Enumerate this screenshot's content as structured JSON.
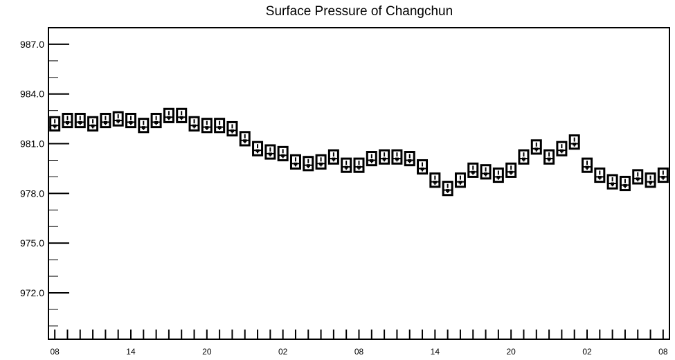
{
  "chart_data": {
    "type": "box",
    "title": "Surface Pressure of Changchun",
    "xlabel": "",
    "ylabel": "",
    "ylim": [
      969.2,
      988.0
    ],
    "y_ticks": [
      "987.0",
      "984.0",
      "981.0",
      "978.0",
      "975.0",
      "972.0"
    ],
    "y_tick_values": [
      987.0,
      984.0,
      981.0,
      978.0,
      975.0,
      972.0
    ],
    "x_tick_labels": [
      "08",
      "14",
      "20",
      "02",
      "08",
      "14",
      "20",
      "02",
      "08"
    ],
    "x_tick_label_positions": [
      0,
      6,
      12,
      18,
      24,
      30,
      36,
      42,
      48
    ],
    "x_range": [
      -0.5,
      48.5
    ],
    "grid": false,
    "boxes": [
      {
        "x": 0,
        "low": 981.8,
        "high": 982.6,
        "median": 982.1
      },
      {
        "x": 1,
        "low": 982.0,
        "high": 982.8,
        "median": 982.3
      },
      {
        "x": 2,
        "low": 982.0,
        "high": 982.8,
        "median": 982.3
      },
      {
        "x": 3,
        "low": 981.8,
        "high": 982.6,
        "median": 982.1
      },
      {
        "x": 4,
        "low": 982.0,
        "high": 982.8,
        "median": 982.3
      },
      {
        "x": 5,
        "low": 982.1,
        "high": 982.9,
        "median": 982.4
      },
      {
        "x": 6,
        "low": 982.0,
        "high": 982.8,
        "median": 982.3
      },
      {
        "x": 7,
        "low": 981.7,
        "high": 982.5,
        "median": 982.0
      },
      {
        "x": 8,
        "low": 982.0,
        "high": 982.8,
        "median": 982.3
      },
      {
        "x": 9,
        "low": 982.3,
        "high": 983.1,
        "median": 982.6
      },
      {
        "x": 10,
        "low": 982.3,
        "high": 983.1,
        "median": 982.6
      },
      {
        "x": 11,
        "low": 981.8,
        "high": 982.6,
        "median": 982.1
      },
      {
        "x": 12,
        "low": 981.7,
        "high": 982.5,
        "median": 982.0
      },
      {
        "x": 13,
        "low": 981.7,
        "high": 982.5,
        "median": 982.0
      },
      {
        "x": 14,
        "low": 981.5,
        "high": 982.3,
        "median": 981.8
      },
      {
        "x": 15,
        "low": 980.9,
        "high": 981.7,
        "median": 981.2
      },
      {
        "x": 16,
        "low": 980.3,
        "high": 981.1,
        "median": 980.6
      },
      {
        "x": 17,
        "low": 980.1,
        "high": 980.9,
        "median": 980.4
      },
      {
        "x": 18,
        "low": 980.0,
        "high": 980.8,
        "median": 980.3
      },
      {
        "x": 19,
        "low": 979.5,
        "high": 980.3,
        "median": 979.8
      },
      {
        "x": 20,
        "low": 979.4,
        "high": 980.2,
        "median": 979.7
      },
      {
        "x": 21,
        "low": 979.5,
        "high": 980.3,
        "median": 979.8
      },
      {
        "x": 22,
        "low": 979.8,
        "high": 980.6,
        "median": 980.1
      },
      {
        "x": 23,
        "low": 979.3,
        "high": 980.1,
        "median": 979.6
      },
      {
        "x": 24,
        "low": 979.3,
        "high": 980.1,
        "median": 979.6
      },
      {
        "x": 25,
        "low": 979.7,
        "high": 980.5,
        "median": 980.0
      },
      {
        "x": 26,
        "low": 979.8,
        "high": 980.6,
        "median": 980.1
      },
      {
        "x": 27,
        "low": 979.8,
        "high": 980.6,
        "median": 980.1
      },
      {
        "x": 28,
        "low": 979.7,
        "high": 980.5,
        "median": 980.0
      },
      {
        "x": 29,
        "low": 979.2,
        "high": 980.0,
        "median": 979.5
      },
      {
        "x": 30,
        "low": 978.4,
        "high": 979.2,
        "median": 978.7
      },
      {
        "x": 31,
        "low": 977.9,
        "high": 978.7,
        "median": 978.2
      },
      {
        "x": 32,
        "low": 978.4,
        "high": 979.2,
        "median": 978.7
      },
      {
        "x": 33,
        "low": 979.0,
        "high": 979.8,
        "median": 979.3
      },
      {
        "x": 34,
        "low": 978.9,
        "high": 979.7,
        "median": 979.2
      },
      {
        "x": 35,
        "low": 978.7,
        "high": 979.5,
        "median": 979.0
      },
      {
        "x": 36,
        "low": 979.0,
        "high": 979.8,
        "median": 979.3
      },
      {
        "x": 37,
        "low": 979.8,
        "high": 980.6,
        "median": 980.1
      },
      {
        "x": 38,
        "low": 980.4,
        "high": 981.2,
        "median": 980.7
      },
      {
        "x": 39,
        "low": 979.8,
        "high": 980.6,
        "median": 980.1
      },
      {
        "x": 40,
        "low": 980.3,
        "high": 981.1,
        "median": 980.6
      },
      {
        "x": 41,
        "low": 980.7,
        "high": 981.5,
        "median": 981.0
      },
      {
        "x": 42,
        "low": 979.3,
        "high": 980.1,
        "median": 979.6
      },
      {
        "x": 43,
        "low": 978.7,
        "high": 979.5,
        "median": 979.0
      },
      {
        "x": 44,
        "low": 978.3,
        "high": 979.1,
        "median": 978.6
      },
      {
        "x": 45,
        "low": 978.2,
        "high": 979.0,
        "median": 978.5
      },
      {
        "x": 46,
        "low": 978.6,
        "high": 979.4,
        "median": 978.9
      },
      {
        "x": 47,
        "low": 978.4,
        "high": 979.2,
        "median": 978.7
      },
      {
        "x": 48,
        "low": 978.7,
        "high": 979.5,
        "median": 979.0
      }
    ]
  }
}
